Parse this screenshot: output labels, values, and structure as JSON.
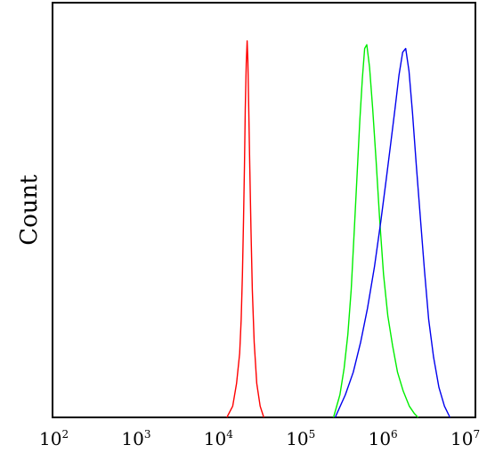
{
  "chart_data": {
    "type": "line",
    "title": "",
    "xlabel": "",
    "ylabel": "Count",
    "x_scale": "log",
    "xlim": [
      100,
      10000000
    ],
    "ylim": [
      0,
      1
    ],
    "grid": false,
    "x_ticks": [
      {
        "base": "10",
        "exp": "2",
        "value": 100
      },
      {
        "base": "10",
        "exp": "3",
        "value": 1000
      },
      {
        "base": "10",
        "exp": "4",
        "value": 10000
      },
      {
        "base": "10",
        "exp": "5",
        "value": 100000
      },
      {
        "base": "10",
        "exp": "6",
        "value": 1000000
      },
      {
        "base": "10",
        "exp": "7",
        "value": 10000000
      }
    ],
    "series": [
      {
        "color": "#ff0000",
        "x": [
          11500,
          13500,
          15000,
          16300,
          17000,
          17600,
          18100,
          18600,
          19000,
          19500,
          20000,
          20400,
          20900,
          21500,
          22200,
          23000,
          24200,
          26000,
          28500,
          31500
        ],
        "y": [
          0,
          0.03,
          0.09,
          0.17,
          0.26,
          0.38,
          0.52,
          0.67,
          0.82,
          0.94,
          1.0,
          0.95,
          0.82,
          0.66,
          0.5,
          0.34,
          0.2,
          0.09,
          0.03,
          0
        ]
      },
      {
        "color": "#00ee00",
        "x": [
          210000,
          250000,
          280000,
          310000,
          340000,
          370000,
          400000,
          430000,
          460000,
          490000,
          520000,
          560000,
          610000,
          670000,
          740000,
          820000,
          920000,
          1050000,
          1200000,
          1400000,
          1650000,
          1900000,
          2100000
        ],
        "y": [
          0,
          0.06,
          0.13,
          0.22,
          0.34,
          0.5,
          0.65,
          0.79,
          0.9,
          0.98,
          0.99,
          0.93,
          0.82,
          0.68,
          0.52,
          0.38,
          0.27,
          0.19,
          0.12,
          0.07,
          0.03,
          0.01,
          0
        ]
      },
      {
        "color": "#0000ee",
        "x": [
          220000,
          290000,
          360000,
          440000,
          530000,
          640000,
          760000,
          880000,
          1000000,
          1120000,
          1250000,
          1380000,
          1500000,
          1640000,
          1800000,
          2000000,
          2250000,
          2500000,
          2800000,
          3200000,
          3700000,
          4300000,
          5000000
        ],
        "y": [
          0,
          0.06,
          0.12,
          0.2,
          0.29,
          0.4,
          0.52,
          0.63,
          0.73,
          0.82,
          0.91,
          0.97,
          0.98,
          0.92,
          0.81,
          0.67,
          0.52,
          0.39,
          0.26,
          0.16,
          0.08,
          0.03,
          0
        ]
      }
    ]
  }
}
